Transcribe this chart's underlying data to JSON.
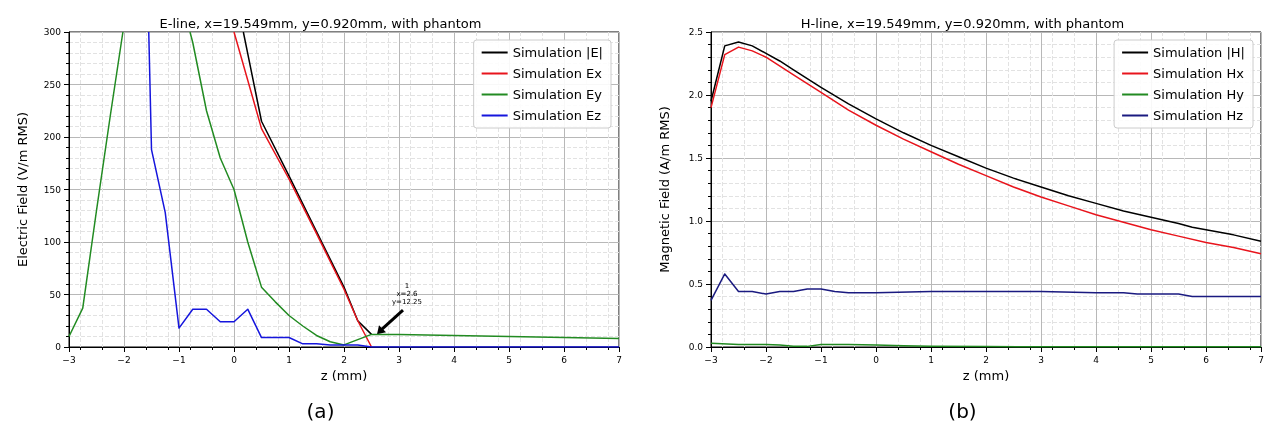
{
  "chart_data": [
    {
      "type": "line",
      "title": "E-line, x=19.549mm, y=0.920mm, with phantom",
      "xlabel": "z (mm)",
      "ylabel": "Electric Field (V/m RMS)",
      "xlim": [
        -3,
        7
      ],
      "xticks": [
        -3,
        -2,
        -1,
        0,
        1,
        2,
        3,
        4,
        5,
        6,
        7
      ],
      "ylim": [
        0,
        300
      ],
      "yticks": [
        0,
        50,
        100,
        150,
        200,
        250,
        300
      ],
      "grid": true,
      "legend": "top right",
      "marker": "none",
      "annotations": [
        {
          "text": "1\nx=2.6\ny=12.25",
          "x": 2.6,
          "y": 12.25
        },
        "(a)"
      ],
      "series": [
        {
          "name": "Simulation |E|",
          "color": "#000000",
          "x": [
            0.17,
            0.5,
            1,
            1.5,
            2,
            2.25,
            2.5
          ],
          "values": [
            300,
            215,
            163,
            110,
            57,
            25,
            12
          ]
        },
        {
          "name": "Simulation Ex",
          "color": "#e8141c",
          "x": [
            0,
            0.5,
            1,
            1.5,
            2,
            2.25,
            2.5
          ],
          "values": [
            300,
            208,
            160,
            108,
            55,
            25,
            0
          ]
        },
        {
          "name": "Simulation Ey",
          "color": "#228b22",
          "x": [
            -3,
            -2.75,
            -2.5,
            -2.25,
            -2.02,
            -1.5,
            -0.8,
            -0.75,
            -0.5,
            -0.25,
            0,
            0.25,
            0.5,
            0.75,
            1,
            1.25,
            1.5,
            1.75,
            2,
            2.25,
            2.5,
            3,
            4,
            5,
            6,
            7
          ],
          "values": [
            10,
            37,
            130,
            220,
            300,
            null,
            300,
            290,
            225,
            180,
            150,
            100,
            57,
            43,
            30,
            20,
            11,
            5,
            2,
            7,
            12,
            12,
            11,
            10,
            9,
            8
          ]
        },
        {
          "name": "Simulation Ez",
          "color": "#1515dd",
          "x": [
            -1.55,
            -1.5,
            -1.25,
            -1,
            -0.75,
            -0.5,
            -0.25,
            0,
            0.25,
            0.5,
            0.75,
            1,
            1.25,
            1.5,
            1.75,
            2,
            2.25,
            2.5,
            7
          ],
          "values": [
            300,
            188,
            128,
            18,
            36,
            36,
            24,
            24,
            36,
            9,
            9,
            9,
            3,
            3,
            2,
            2,
            2,
            0,
            0
          ]
        }
      ]
    },
    {
      "type": "line",
      "title": "H-line, x=19.549mm, y=0.920mm, with phantom",
      "xlabel": "z (mm)",
      "ylabel": "Magnetic Field (A/m RMS)",
      "xlim": [
        -3,
        7
      ],
      "xticks": [
        -3,
        -2,
        -1,
        0,
        1,
        2,
        3,
        4,
        5,
        6,
        7
      ],
      "ylim": [
        0,
        2.5
      ],
      "yticks": [
        {
          "value": 0,
          "label": "0.0"
        },
        0.5,
        {
          "value": 1,
          "label": "1.0"
        },
        1.5,
        {
          "value": 2,
          "label": "2.0"
        },
        2.5
      ],
      "grid": true,
      "legend": "top right",
      "marker": "none",
      "annotations": [
        "(b)"
      ],
      "series": [
        {
          "name": "Simulation |H|",
          "color": "#000000",
          "x": [
            -3,
            -2.75,
            -2.5,
            -2.25,
            -2,
            -1.75,
            -1.5,
            -1,
            -0.5,
            0,
            0.5,
            1,
            1.5,
            2,
            2.5,
            3,
            3.5,
            4,
            4.5,
            5,
            5.5,
            5.75,
            6,
            6.5,
            7
          ],
          "values": [
            1.95,
            2.39,
            2.42,
            2.39,
            2.33,
            2.27,
            2.2,
            2.06,
            1.93,
            1.81,
            1.7,
            1.6,
            1.51,
            1.42,
            1.34,
            1.27,
            1.2,
            1.14,
            1.08,
            1.03,
            0.98,
            0.95,
            0.93,
            0.89,
            0.84
          ]
        },
        {
          "name": "Simulation Hx",
          "color": "#e8141c",
          "x": [
            -3,
            -2.75,
            -2.5,
            -2.25,
            -2,
            -1.5,
            -1,
            -0.5,
            0,
            0.5,
            1,
            1.5,
            2,
            2.5,
            3,
            3.5,
            4,
            4.5,
            5,
            5.5,
            6,
            6.5,
            7
          ],
          "values": [
            1.9,
            2.32,
            2.38,
            2.35,
            2.3,
            2.16,
            2.02,
            1.88,
            1.76,
            1.65,
            1.55,
            1.45,
            1.36,
            1.27,
            1.19,
            1.12,
            1.05,
            0.99,
            0.93,
            0.88,
            0.83,
            0.79,
            0.74
          ]
        },
        {
          "name": "Simulation Hy",
          "color": "#228b22",
          "x": [
            -3,
            -2.5,
            -2,
            -1.75,
            -1.5,
            -1.25,
            -1,
            -0.5,
            0,
            0.5,
            1,
            2,
            7
          ],
          "values": [
            0.03,
            0.02,
            0.02,
            0.015,
            0.005,
            0.005,
            0.02,
            0.02,
            0.015,
            0.01,
            0.005,
            0.003,
            0.002
          ]
        },
        {
          "name": "Simulation Hz",
          "color": "#1a1a80",
          "x": [
            -3,
            -2.75,
            -2.5,
            -2.25,
            -2,
            -1.75,
            -1.5,
            -1.25,
            -1,
            -0.75,
            -0.5,
            0,
            1,
            2,
            3,
            4,
            4.5,
            4.75,
            5.5,
            5.75,
            7
          ],
          "values": [
            0.37,
            0.58,
            0.44,
            0.44,
            0.42,
            0.44,
            0.44,
            0.46,
            0.46,
            0.44,
            0.43,
            0.43,
            0.44,
            0.44,
            0.44,
            0.43,
            0.43,
            0.42,
            0.42,
            0.4,
            0.4
          ]
        }
      ]
    }
  ]
}
